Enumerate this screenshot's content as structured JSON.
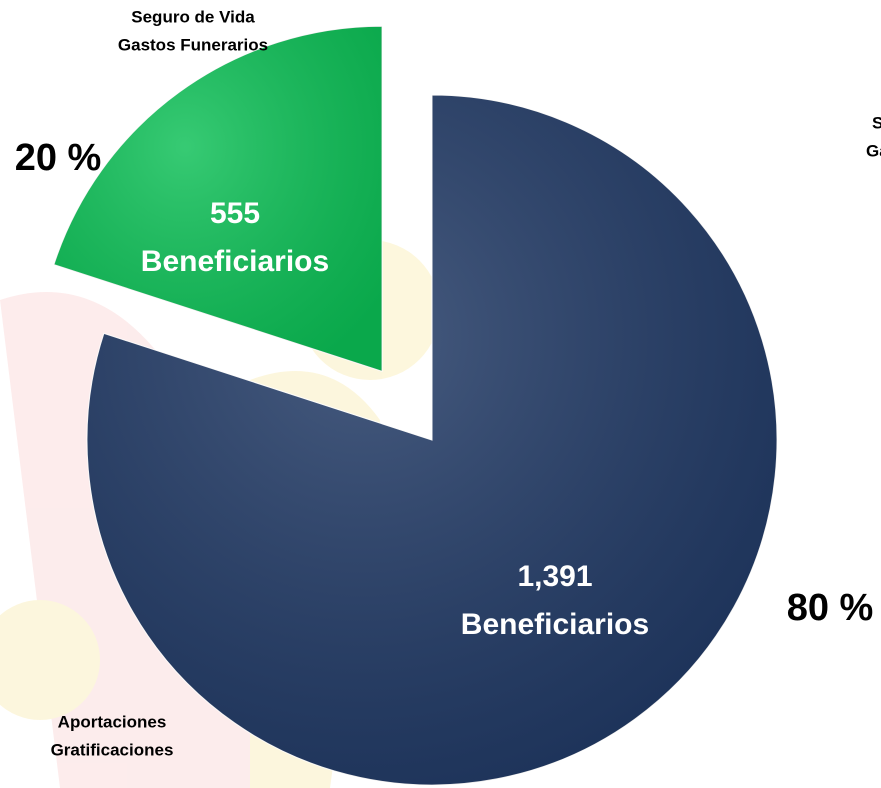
{
  "chart_data": {
    "type": "pie",
    "categories": [
      [
        "Seguro de Vida",
        "Gastos Funerarios"
      ],
      [
        "Aportaciones",
        "Gratificaciones"
      ]
    ],
    "values": [
      20,
      80
    ],
    "value_labels": [
      "20 %",
      "80 %"
    ],
    "colors": [
      "#0bbf55",
      "#1f3864"
    ],
    "beneficiaries": [
      555,
      1391
    ],
    "beneficiary_labels": [
      "555",
      "1,391"
    ],
    "beneficiary_unit": "Beneficiarios",
    "clipped_label_fragment": [
      "S",
      "Ga"
    ]
  }
}
